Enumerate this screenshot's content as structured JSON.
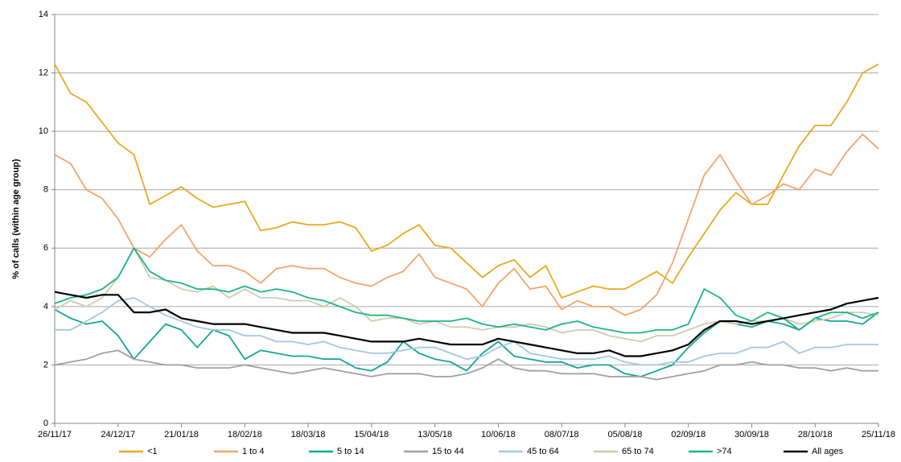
{
  "chart_data": {
    "type": "line",
    "y_label": "% of calls (within age group)",
    "x": [
      "26/11/17",
      "03/12/17",
      "10/12/17",
      "17/12/17",
      "24/12/17",
      "31/12/17",
      "07/01/18",
      "14/01/18",
      "21/01/18",
      "28/01/18",
      "04/02/18",
      "11/02/18",
      "18/02/18",
      "25/02/18",
      "04/03/18",
      "11/03/18",
      "18/03/18",
      "25/03/18",
      "01/04/18",
      "08/04/18",
      "15/04/18",
      "22/04/18",
      "29/04/18",
      "06/05/18",
      "13/05/18",
      "20/05/18",
      "27/05/18",
      "03/06/18",
      "10/06/18",
      "17/06/18",
      "24/06/18",
      "01/07/18",
      "08/07/18",
      "15/07/18",
      "22/07/18",
      "29/07/18",
      "05/08/18",
      "12/08/18",
      "19/08/18",
      "26/08/18",
      "02/09/18",
      "09/09/18",
      "16/09/18",
      "23/09/18",
      "30/09/18",
      "07/10/18",
      "14/10/18",
      "21/10/18",
      "28/10/18",
      "04/11/18",
      "11/11/18",
      "18/11/18",
      "25/11/18"
    ],
    "xlim": [
      "26/11/17",
      "25/11/18"
    ],
    "xticks": [
      "26/11/17",
      "24/12/17",
      "21/01/18",
      "18/02/18",
      "18/03/18",
      "15/04/18",
      "13/05/18",
      "10/06/18",
      "08/07/18",
      "05/08/18",
      "02/09/18",
      "30/09/18",
      "28/10/18",
      "25/11/18"
    ],
    "ylim": [
      0,
      14
    ],
    "yticks": [
      0,
      2,
      4,
      6,
      8,
      10,
      12,
      14
    ],
    "grid": true,
    "legend": "bottom",
    "series": [
      {
        "name": "<1",
        "color": "#eaa820",
        "values": [
          12.3,
          11.3,
          11.0,
          10.3,
          9.6,
          9.2,
          7.5,
          7.8,
          8.1,
          7.7,
          7.4,
          7.5,
          7.6,
          6.6,
          6.7,
          6.9,
          6.8,
          6.8,
          6.9,
          6.7,
          5.9,
          6.1,
          6.5,
          6.8,
          6.1,
          6.0,
          5.5,
          5.0,
          5.4,
          5.6,
          5.0,
          5.4,
          4.3,
          4.5,
          4.7,
          4.6,
          4.6,
          4.9,
          5.2,
          4.8,
          5.7,
          6.5,
          7.3,
          7.9,
          7.5,
          7.5,
          8.5,
          9.5,
          10.2,
          10.2,
          11.0,
          12.0,
          12.3
        ]
      },
      {
        "name": "1 to 4",
        "color": "#f4a46a",
        "values": [
          9.2,
          8.9,
          8.0,
          7.7,
          7.0,
          6.0,
          5.7,
          6.3,
          6.8,
          5.9,
          5.4,
          5.4,
          5.2,
          4.8,
          5.3,
          5.4,
          5.3,
          5.3,
          5.0,
          4.8,
          4.7,
          5.0,
          5.2,
          5.8,
          5.0,
          4.8,
          4.6,
          4.0,
          4.8,
          5.3,
          4.6,
          4.7,
          3.9,
          4.2,
          4.0,
          4.0,
          3.7,
          3.9,
          4.4,
          5.5,
          7.0,
          8.5,
          9.2,
          8.3,
          7.5,
          7.8,
          8.2,
          8.0,
          8.7,
          8.5,
          9.3,
          9.9,
          9.4
        ]
      },
      {
        "name": "5 to 14",
        "color": "#14a596",
        "values": [
          3.9,
          3.6,
          3.4,
          3.5,
          3.0,
          2.2,
          2.8,
          3.4,
          3.2,
          2.6,
          3.2,
          3.0,
          2.2,
          2.5,
          2.4,
          2.3,
          2.3,
          2.2,
          2.2,
          1.9,
          1.8,
          2.1,
          2.8,
          2.4,
          2.2,
          2.1,
          1.8,
          2.4,
          2.8,
          2.3,
          2.2,
          2.1,
          2.1,
          1.9,
          2.0,
          2.0,
          1.7,
          1.6,
          1.8,
          2.0,
          2.6,
          3.1,
          3.5,
          3.4,
          3.3,
          3.5,
          3.4,
          3.2,
          3.6,
          3.5,
          3.5,
          3.4,
          3.8
        ]
      },
      {
        "name": "15 to 44",
        "color": "#a0a0a0",
        "values": [
          2.0,
          2.1,
          2.2,
          2.4,
          2.5,
          2.2,
          2.1,
          2.0,
          2.0,
          1.9,
          1.9,
          1.9,
          2.0,
          1.9,
          1.8,
          1.7,
          1.8,
          1.9,
          1.8,
          1.7,
          1.6,
          1.7,
          1.7,
          1.7,
          1.6,
          1.6,
          1.7,
          1.9,
          2.2,
          1.9,
          1.8,
          1.8,
          1.7,
          1.7,
          1.7,
          1.6,
          1.6,
          1.6,
          1.5,
          1.6,
          1.7,
          1.8,
          2.0,
          2.0,
          2.1,
          2.0,
          2.0,
          1.9,
          1.9,
          1.8,
          1.9,
          1.8,
          1.8
        ]
      },
      {
        "name": "45 to 64",
        "color": "#a3c8de",
        "values": [
          3.2,
          3.2,
          3.5,
          3.8,
          4.2,
          4.3,
          4.0,
          3.7,
          3.5,
          3.3,
          3.2,
          3.2,
          3.0,
          3.0,
          2.8,
          2.8,
          2.7,
          2.8,
          2.6,
          2.5,
          2.4,
          2.4,
          2.5,
          2.6,
          2.6,
          2.4,
          2.2,
          2.3,
          2.6,
          2.8,
          2.4,
          2.3,
          2.2,
          2.2,
          2.2,
          2.3,
          2.1,
          2.0,
          2.0,
          2.1,
          2.1,
          2.3,
          2.4,
          2.4,
          2.6,
          2.6,
          2.8,
          2.4,
          2.6,
          2.6,
          2.7,
          2.7,
          2.7
        ]
      },
      {
        "name": "65 to 74",
        "color": "#d0cbae",
        "values": [
          3.9,
          4.2,
          4.0,
          4.3,
          5.0,
          6.0,
          5.0,
          4.9,
          4.6,
          4.5,
          4.7,
          4.3,
          4.6,
          4.3,
          4.3,
          4.2,
          4.2,
          4.0,
          4.3,
          4.0,
          3.5,
          3.6,
          3.6,
          3.4,
          3.5,
          3.3,
          3.3,
          3.2,
          3.3,
          3.3,
          3.4,
          3.3,
          3.1,
          3.2,
          3.2,
          3.0,
          2.9,
          2.8,
          3.0,
          3.0,
          3.2,
          3.4,
          3.5,
          3.4,
          3.5,
          3.5,
          3.6,
          3.4,
          3.5,
          3.6,
          3.8,
          3.8,
          3.7
        ]
      },
      {
        "name": ">74",
        "color": "#1cb487",
        "values": [
          4.1,
          4.3,
          4.4,
          4.6,
          5.0,
          6.0,
          5.2,
          4.9,
          4.8,
          4.6,
          4.6,
          4.5,
          4.7,
          4.5,
          4.6,
          4.5,
          4.3,
          4.2,
          4.0,
          3.8,
          3.7,
          3.7,
          3.6,
          3.5,
          3.5,
          3.5,
          3.6,
          3.4,
          3.3,
          3.4,
          3.3,
          3.2,
          3.4,
          3.5,
          3.3,
          3.2,
          3.1,
          3.1,
          3.2,
          3.2,
          3.4,
          4.6,
          4.3,
          3.7,
          3.5,
          3.8,
          3.6,
          3.2,
          3.6,
          3.8,
          3.8,
          3.6,
          3.8
        ]
      },
      {
        "name": "All ages",
        "color": "#000000",
        "values": [
          4.5,
          4.4,
          4.3,
          4.4,
          4.4,
          3.8,
          3.8,
          3.9,
          3.6,
          3.5,
          3.4,
          3.4,
          3.4,
          3.3,
          3.2,
          3.1,
          3.1,
          3.1,
          3.0,
          2.9,
          2.8,
          2.8,
          2.8,
          2.9,
          2.8,
          2.7,
          2.7,
          2.7,
          2.9,
          2.8,
          2.7,
          2.6,
          2.5,
          2.4,
          2.4,
          2.5,
          2.3,
          2.3,
          2.4,
          2.5,
          2.7,
          3.2,
          3.5,
          3.5,
          3.4,
          3.5,
          3.6,
          3.7,
          3.8,
          3.9,
          4.1,
          4.2,
          4.3
        ]
      }
    ]
  }
}
